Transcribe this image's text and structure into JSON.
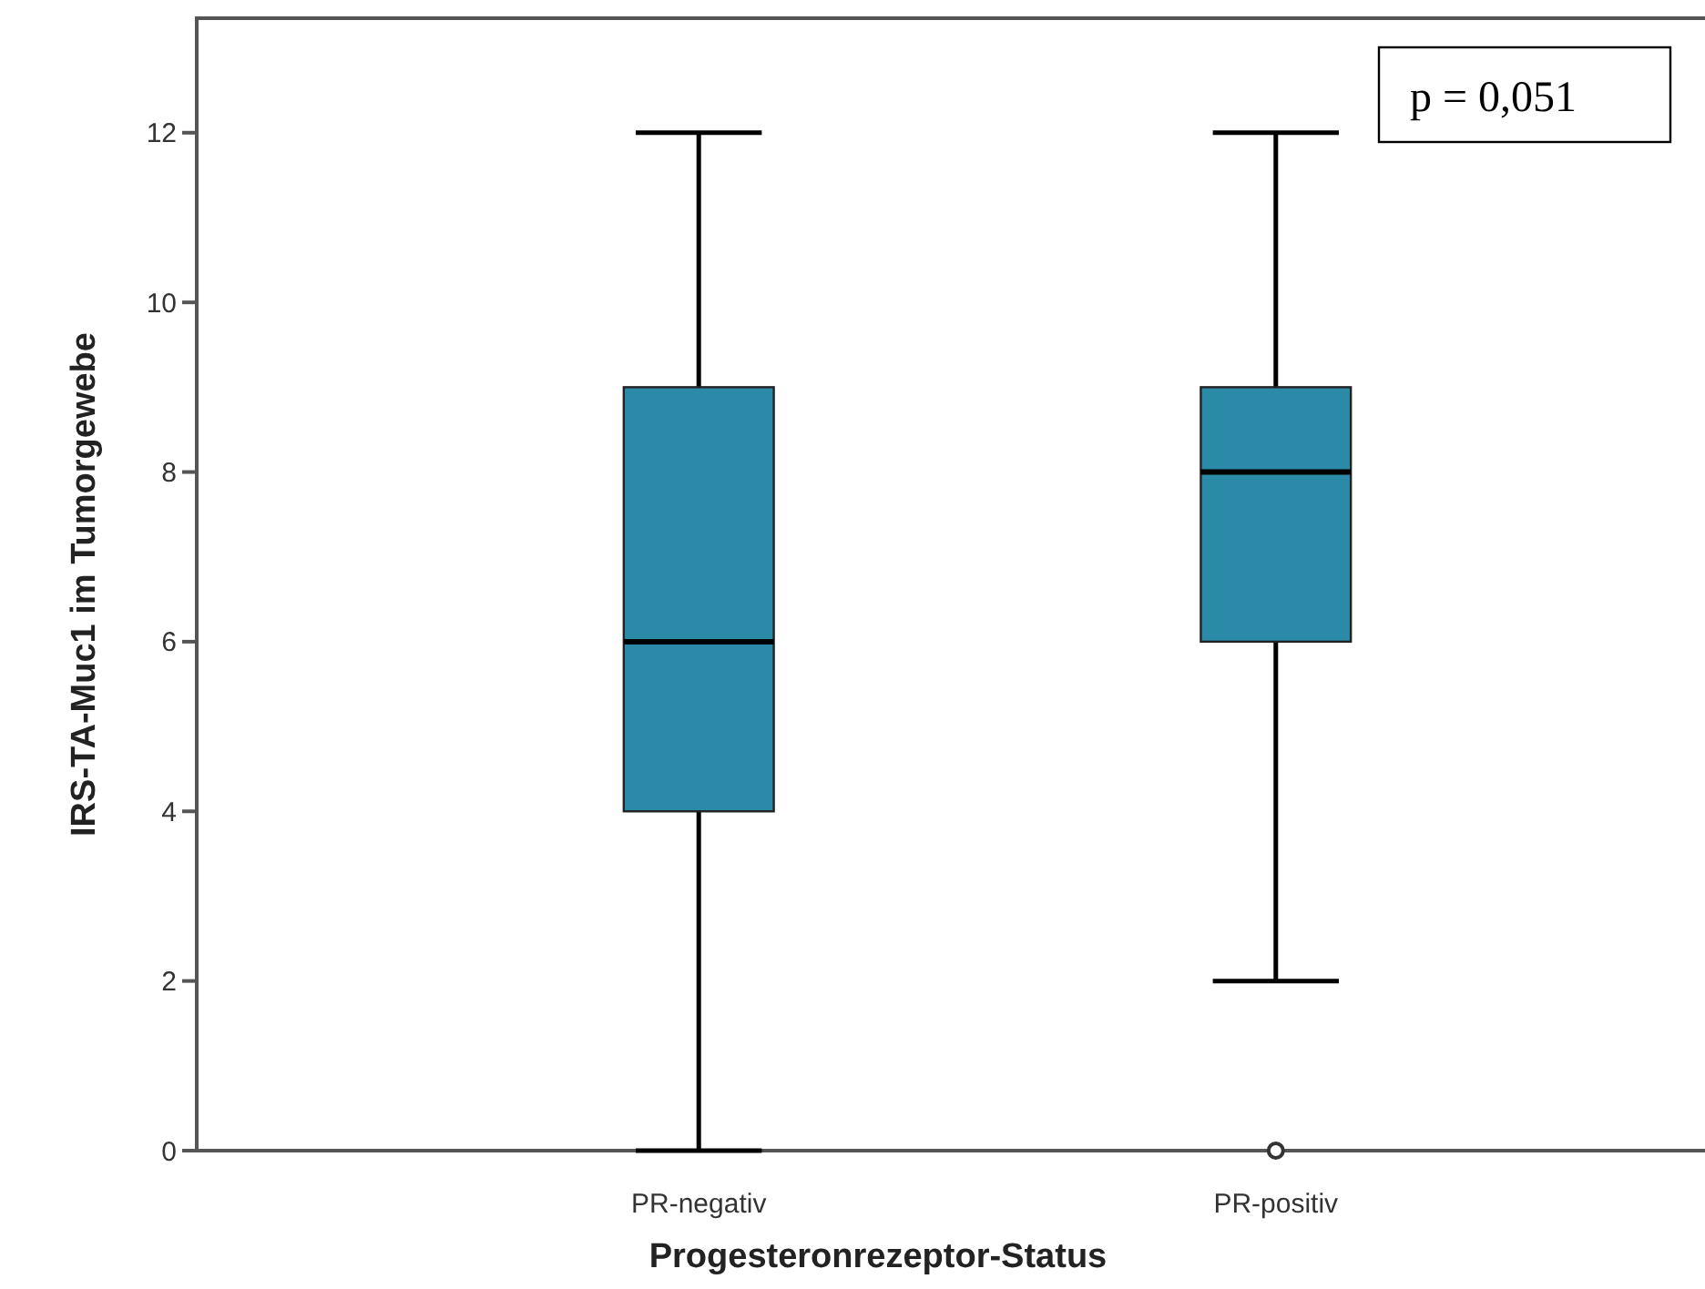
{
  "chart_data": {
    "type": "box",
    "xlabel": "Progesteronrezeptor-Status",
    "ylabel": "IRS-TA-Muc1 im Tumorgewebe",
    "categories": [
      "PR-negativ",
      "PR-positiv"
    ],
    "boxes": [
      {
        "low": 0,
        "q1": 4,
        "median": 6,
        "q3": 9,
        "high": 12
      },
      {
        "low": 2,
        "q1": 6,
        "median": 8,
        "q3": 9,
        "high": 12,
        "outliers": [
          0
        ]
      }
    ],
    "color": "#2b8aa8",
    "ylim": [
      0,
      13.35
    ],
    "yticks": [
      0,
      2,
      4,
      6,
      8,
      10,
      12
    ],
    "grid": false,
    "annotations": [
      "p = 0,051"
    ]
  }
}
